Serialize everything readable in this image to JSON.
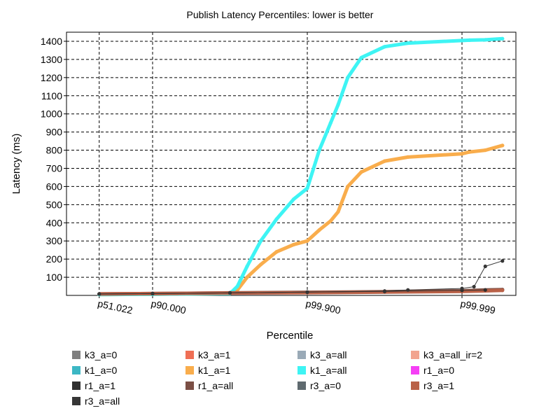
{
  "chart_data": {
    "type": "scatter",
    "title": "Publish Latency Percentiles: lower is better",
    "xlabel": "Percentile",
    "ylabel": "Latency (ms)",
    "x_scale": "log_reciprocal_of_100_minus_percentile",
    "x_ticks": [
      {
        "value": 51.022,
        "label": "p51.022"
      },
      {
        "value": 90.0,
        "label": "p90.000"
      },
      {
        "value": 99.9,
        "label": "p99.900"
      },
      {
        "value": 99.999,
        "label": "p99.999"
      }
    ],
    "y_ticks": [
      100,
      200,
      300,
      400,
      500,
      600,
      700,
      800,
      900,
      1000,
      1100,
      1200,
      1300,
      1400
    ],
    "ylim": [
      0,
      1450
    ],
    "grid": true,
    "legend_position": "bottom",
    "series": [
      {
        "name": "k3_a=0",
        "color": "#7f7f7f",
        "points": []
      },
      {
        "name": "k3_a=1",
        "color": "#ef6f55",
        "points": []
      },
      {
        "name": "k3_a=all",
        "color": "#9aaab7",
        "points": []
      },
      {
        "name": "k3_a=all_ir=2",
        "color": "#f2a48f",
        "points": []
      },
      {
        "name": "k1_a=0",
        "color": "#3cb7c4",
        "points": []
      },
      {
        "name": "k1_a=1",
        "color": "#f9ad4c",
        "points": [
          [
            51.022,
            5
          ],
          [
            90.0,
            7
          ],
          [
            99.0,
            10
          ],
          [
            99.2,
            30
          ],
          [
            99.4,
            100
          ],
          [
            99.6,
            170
          ],
          [
            99.75,
            240
          ],
          [
            99.85,
            280
          ],
          [
            99.9,
            300
          ],
          [
            99.93,
            360
          ],
          [
            99.95,
            410
          ],
          [
            99.96,
            460
          ],
          [
            99.97,
            600
          ],
          [
            99.98,
            680
          ],
          [
            99.99,
            740
          ],
          [
            99.995,
            762
          ],
          [
            99.999,
            780
          ],
          [
            99.9992,
            790
          ],
          [
            99.9995,
            800
          ],
          [
            99.9997,
            826
          ]
        ]
      },
      {
        "name": "k1_a=all",
        "color": "#3ef4f4",
        "points": [
          [
            51.022,
            5
          ],
          [
            90.0,
            7
          ],
          [
            99.0,
            10
          ],
          [
            99.2,
            50
          ],
          [
            99.4,
            160
          ],
          [
            99.6,
            300
          ],
          [
            99.75,
            420
          ],
          [
            99.85,
            530
          ],
          [
            99.9,
            590
          ],
          [
            99.93,
            800
          ],
          [
            99.95,
            950
          ],
          [
            99.96,
            1050
          ],
          [
            99.97,
            1200
          ],
          [
            99.98,
            1310
          ],
          [
            99.99,
            1370
          ],
          [
            99.995,
            1390
          ],
          [
            99.999,
            1404
          ],
          [
            99.9992,
            1406
          ],
          [
            99.9995,
            1408
          ],
          [
            99.9997,
            1414
          ]
        ]
      },
      {
        "name": "r1_a=0",
        "color": "#f53ff5",
        "points": []
      },
      {
        "name": "r1_a=1",
        "color": "#2f2f2f",
        "points": [
          [
            51.022,
            8
          ],
          [
            90.0,
            10
          ],
          [
            99.0,
            14
          ],
          [
            99.9,
            18
          ],
          [
            99.99,
            22
          ],
          [
            99.999,
            28
          ],
          [
            99.9995,
            30
          ]
        ]
      },
      {
        "name": "r1_a=all",
        "color": "#7b4f45",
        "points": [
          [
            51.022,
            8
          ],
          [
            90.0,
            10
          ],
          [
            99.0,
            14
          ],
          [
            99.9,
            17
          ],
          [
            99.99,
            20
          ],
          [
            99.999,
            25
          ],
          [
            99.9995,
            30
          ],
          [
            99.9997,
            32
          ]
        ]
      },
      {
        "name": "r3_a=0",
        "color": "#5f6a6f",
        "points": []
      },
      {
        "name": "r3_a=1",
        "color": "#b96147",
        "points": [
          [
            51.022,
            8
          ],
          [
            90.0,
            10
          ],
          [
            99.0,
            13
          ],
          [
            99.9,
            15
          ],
          [
            99.99,
            18
          ],
          [
            99.999,
            22
          ],
          [
            99.9995,
            25
          ],
          [
            99.9997,
            28
          ]
        ]
      },
      {
        "name": "r3_a=all",
        "color": "#363636",
        "points": [
          [
            51.022,
            8
          ],
          [
            90.0,
            10
          ],
          [
            99.0,
            14
          ],
          [
            99.9,
            18
          ],
          [
            99.99,
            24
          ],
          [
            99.995,
            30
          ],
          [
            99.999,
            38
          ],
          [
            99.9993,
            48
          ],
          [
            99.9995,
            160
          ],
          [
            99.9997,
            190
          ]
        ]
      }
    ]
  }
}
